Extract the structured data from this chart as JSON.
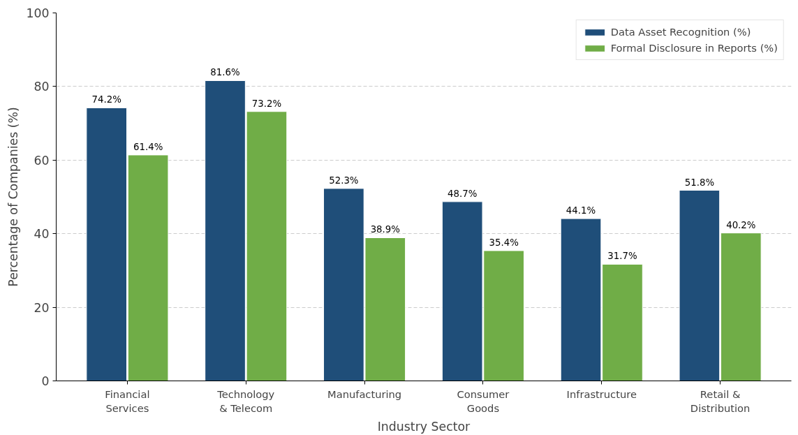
{
  "chart_data": {
    "type": "bar",
    "xlabel": "Industry Sector",
    "ylabel": "Percentage of Companies (%)",
    "categories": [
      "Financial\nServices",
      "Technology\n& Telecom",
      "Manufacturing",
      "Consumer\nGoods",
      "Infrastructure",
      "Retail &\nDistribution"
    ],
    "series": [
      {
        "name": "Data Asset Recognition (%)",
        "color": "#1f4e79",
        "values": [
          74.2,
          81.6,
          52.3,
          48.7,
          44.1,
          51.8
        ],
        "value_labels": [
          "74.2%",
          "81.6%",
          "52.3%",
          "48.7%",
          "44.1%",
          "51.8%"
        ]
      },
      {
        "name": "Formal Disclosure in Reports (%)",
        "color": "#70ad47",
        "values": [
          61.4,
          73.2,
          38.9,
          35.4,
          31.7,
          40.2
        ],
        "value_labels": [
          "61.4%",
          "73.2%",
          "38.9%",
          "35.4%",
          "31.7%",
          "40.2%"
        ]
      }
    ],
    "ylim": [
      0,
      100
    ],
    "yticks": [
      0,
      20,
      40,
      60,
      80,
      100
    ],
    "grid": "y",
    "legend": "top right"
  }
}
